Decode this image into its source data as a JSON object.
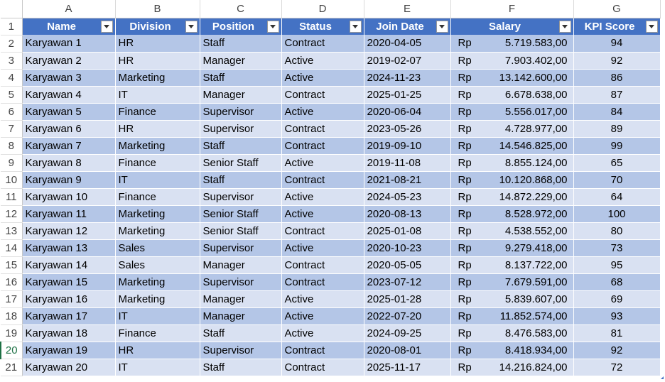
{
  "columns": [
    "A",
    "B",
    "C",
    "D",
    "E",
    "F",
    "G"
  ],
  "header_row_number": "1",
  "headers": [
    "Name",
    "Division",
    "Position",
    "Status",
    "Join Date",
    "Salary",
    "KPI Score"
  ],
  "currency": "Rp",
  "selected_row": 20,
  "rows": [
    {
      "n": "2",
      "name": "Karyawan 1",
      "division": "HR",
      "position": "Staff",
      "status": "Contract",
      "date": "2020-04-05",
      "salary": "5.719.583,00",
      "kpi": "94"
    },
    {
      "n": "3",
      "name": "Karyawan 2",
      "division": "HR",
      "position": "Manager",
      "status": "Active",
      "date": "2019-02-07",
      "salary": "7.903.402,00",
      "kpi": "92"
    },
    {
      "n": "4",
      "name": "Karyawan 3",
      "division": "Marketing",
      "position": "Staff",
      "status": "Active",
      "date": "2024-11-23",
      "salary": "13.142.600,00",
      "kpi": "86"
    },
    {
      "n": "5",
      "name": "Karyawan 4",
      "division": "IT",
      "position": "Manager",
      "status": "Contract",
      "date": "2025-01-25",
      "salary": "6.678.638,00",
      "kpi": "87"
    },
    {
      "n": "6",
      "name": "Karyawan 5",
      "division": "Finance",
      "position": "Supervisor",
      "status": "Active",
      "date": "2020-06-04",
      "salary": "5.556.017,00",
      "kpi": "84"
    },
    {
      "n": "7",
      "name": "Karyawan 6",
      "division": "HR",
      "position": "Supervisor",
      "status": "Contract",
      "date": "2023-05-26",
      "salary": "4.728.977,00",
      "kpi": "89"
    },
    {
      "n": "8",
      "name": "Karyawan 7",
      "division": "Marketing",
      "position": "Staff",
      "status": "Contract",
      "date": "2019-09-10",
      "salary": "14.546.825,00",
      "kpi": "99"
    },
    {
      "n": "9",
      "name": "Karyawan 8",
      "division": "Finance",
      "position": "Senior Staff",
      "status": "Active",
      "date": "2019-11-08",
      "salary": "8.855.124,00",
      "kpi": "65"
    },
    {
      "n": "10",
      "name": "Karyawan 9",
      "division": "IT",
      "position": "Staff",
      "status": "Contract",
      "date": "2021-08-21",
      "salary": "10.120.868,00",
      "kpi": "70"
    },
    {
      "n": "11",
      "name": "Karyawan 10",
      "division": "Finance",
      "position": "Supervisor",
      "status": "Active",
      "date": "2024-05-23",
      "salary": "14.872.229,00",
      "kpi": "64"
    },
    {
      "n": "12",
      "name": "Karyawan 11",
      "division": "Marketing",
      "position": "Senior Staff",
      "status": "Active",
      "date": "2020-08-13",
      "salary": "8.528.972,00",
      "kpi": "100"
    },
    {
      "n": "13",
      "name": "Karyawan 12",
      "division": "Marketing",
      "position": "Senior Staff",
      "status": "Contract",
      "date": "2025-01-08",
      "salary": "4.538.552,00",
      "kpi": "80"
    },
    {
      "n": "14",
      "name": "Karyawan 13",
      "division": "Sales",
      "position": "Supervisor",
      "status": "Active",
      "date": "2020-10-23",
      "salary": "9.279.418,00",
      "kpi": "73"
    },
    {
      "n": "15",
      "name": "Karyawan 14",
      "division": "Sales",
      "position": "Manager",
      "status": "Contract",
      "date": "2020-05-05",
      "salary": "8.137.722,00",
      "kpi": "95"
    },
    {
      "n": "16",
      "name": "Karyawan 15",
      "division": "Marketing",
      "position": "Supervisor",
      "status": "Contract",
      "date": "2023-07-12",
      "salary": "7.679.591,00",
      "kpi": "68"
    },
    {
      "n": "17",
      "name": "Karyawan 16",
      "division": "Marketing",
      "position": "Manager",
      "status": "Active",
      "date": "2025-01-28",
      "salary": "5.839.607,00",
      "kpi": "69"
    },
    {
      "n": "18",
      "name": "Karyawan 17",
      "division": "IT",
      "position": "Manager",
      "status": "Active",
      "date": "2022-07-20",
      "salary": "11.852.574,00",
      "kpi": "93"
    },
    {
      "n": "19",
      "name": "Karyawan 18",
      "division": "Finance",
      "position": "Staff",
      "status": "Active",
      "date": "2024-09-25",
      "salary": "8.476.583,00",
      "kpi": "81"
    },
    {
      "n": "20",
      "name": "Karyawan 19",
      "division": "HR",
      "position": "Supervisor",
      "status": "Contract",
      "date": "2020-08-01",
      "salary": "8.418.934,00",
      "kpi": "92"
    },
    {
      "n": "21",
      "name": "Karyawan 20",
      "division": "IT",
      "position": "Staff",
      "status": "Contract",
      "date": "2025-11-17",
      "salary": "14.216.824,00",
      "kpi": "72"
    }
  ],
  "colors": {
    "header_fill": "#4472c4",
    "band_dark": "#b4c6e7",
    "band_light": "#d9e1f2",
    "selected_row_header": "#1e7145"
  }
}
